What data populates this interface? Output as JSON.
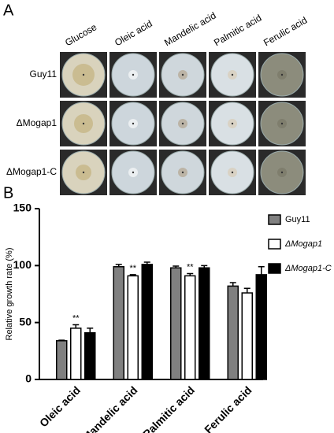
{
  "panels": [
    "A",
    "B"
  ],
  "panel_a": {
    "columns": [
      "Glucose",
      "Oleic acid",
      "Mandelic acid",
      "Palmitic acid",
      "Ferulic acid"
    ],
    "rows": [
      "Guy11",
      "ΔMogap1",
      "ΔMogap1-C"
    ]
  },
  "chart_data": {
    "type": "bar",
    "ylabel": "Relative growth rate (%)",
    "categories": [
      "Oleic acid",
      "Mandelic acid",
      "Palmitic acid",
      "Ferulic acid"
    ],
    "series": [
      {
        "name": "Guy11",
        "color": "#808080",
        "values": [
          34,
          99,
          98,
          82
        ],
        "errors": [
          0.5,
          2,
          1.5,
          3
        ]
      },
      {
        "name": "ΔMogap1",
        "color": "#ffffff",
        "values": [
          45,
          91,
          91,
          76
        ],
        "errors": [
          3,
          1,
          2,
          4
        ],
        "annotations": [
          "**",
          "**",
          "**",
          null
        ]
      },
      {
        "name": "ΔMogap1-C",
        "color": "#000000",
        "values": [
          41,
          101,
          98,
          92
        ],
        "errors": [
          4,
          2,
          2,
          7
        ]
      }
    ],
    "ylim": [
      0,
      150
    ],
    "yticks": [
      0,
      50,
      100,
      150
    ]
  }
}
